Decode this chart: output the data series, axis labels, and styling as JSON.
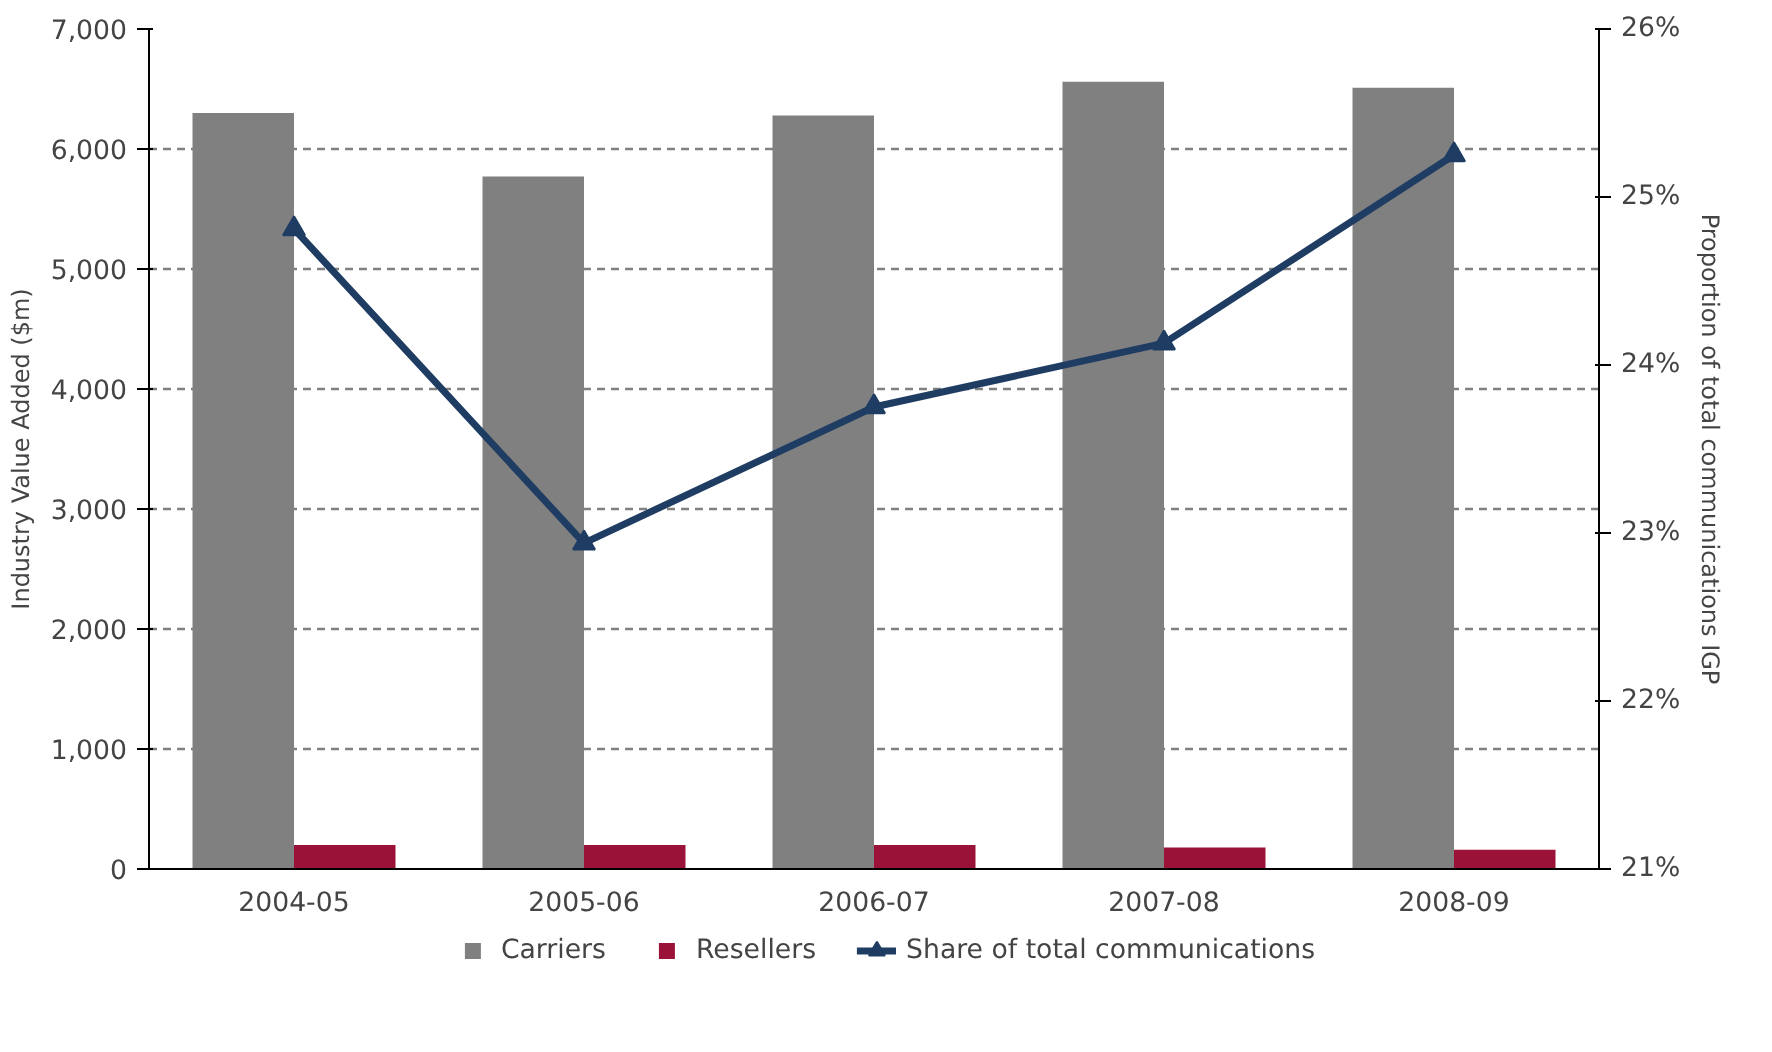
{
  "chart_data": {
    "type": "bar",
    "ylabel": "Industry Value Added ($m)",
    "y2label": "Proportion of total communications IGP",
    "categories": [
      "2004-05",
      "2005-06",
      "2006-07",
      "2007-08",
      "2008-09"
    ],
    "series": [
      {
        "name": "Carriers",
        "color": "#808080",
        "values": [
          6300,
          5770,
          6280,
          6560,
          6510
        ]
      },
      {
        "name": "Resellers",
        "color": "#9b1239",
        "values": [
          200,
          200,
          200,
          180,
          160
        ]
      },
      {
        "name": "Share of total communications",
        "type": "line",
        "axis": "y2",
        "color": "#1f3d63",
        "marker": "triangle",
        "values": [
          24.81,
          22.94,
          23.75,
          24.13,
          25.25
        ]
      }
    ],
    "ylim": [
      0,
      7000
    ],
    "yticks": [
      0,
      {
        "value": 1000,
        "label": "1,000"
      },
      {
        "value": 2000,
        "label": "2,000"
      },
      {
        "value": 3000,
        "label": "3,000"
      },
      {
        "value": 4000,
        "label": "4,000"
      },
      {
        "value": 5000,
        "label": "5,000"
      },
      {
        "value": 6000,
        "label": "6,000"
      },
      {
        "value": 7000,
        "label": "7,000"
      }
    ],
    "y2lim": [
      21,
      26
    ],
    "y2ticks": [
      {
        "value": 21,
        "label": "21%"
      },
      {
        "value": 22,
        "label": "22%"
      },
      {
        "value": 23,
        "label": "23%"
      },
      {
        "value": 24,
        "label": "24%"
      },
      {
        "value": 25,
        "label": "25%"
      },
      {
        "value": 26,
        "label": "26%"
      }
    ],
    "grid": "y",
    "legend": "bottom"
  }
}
